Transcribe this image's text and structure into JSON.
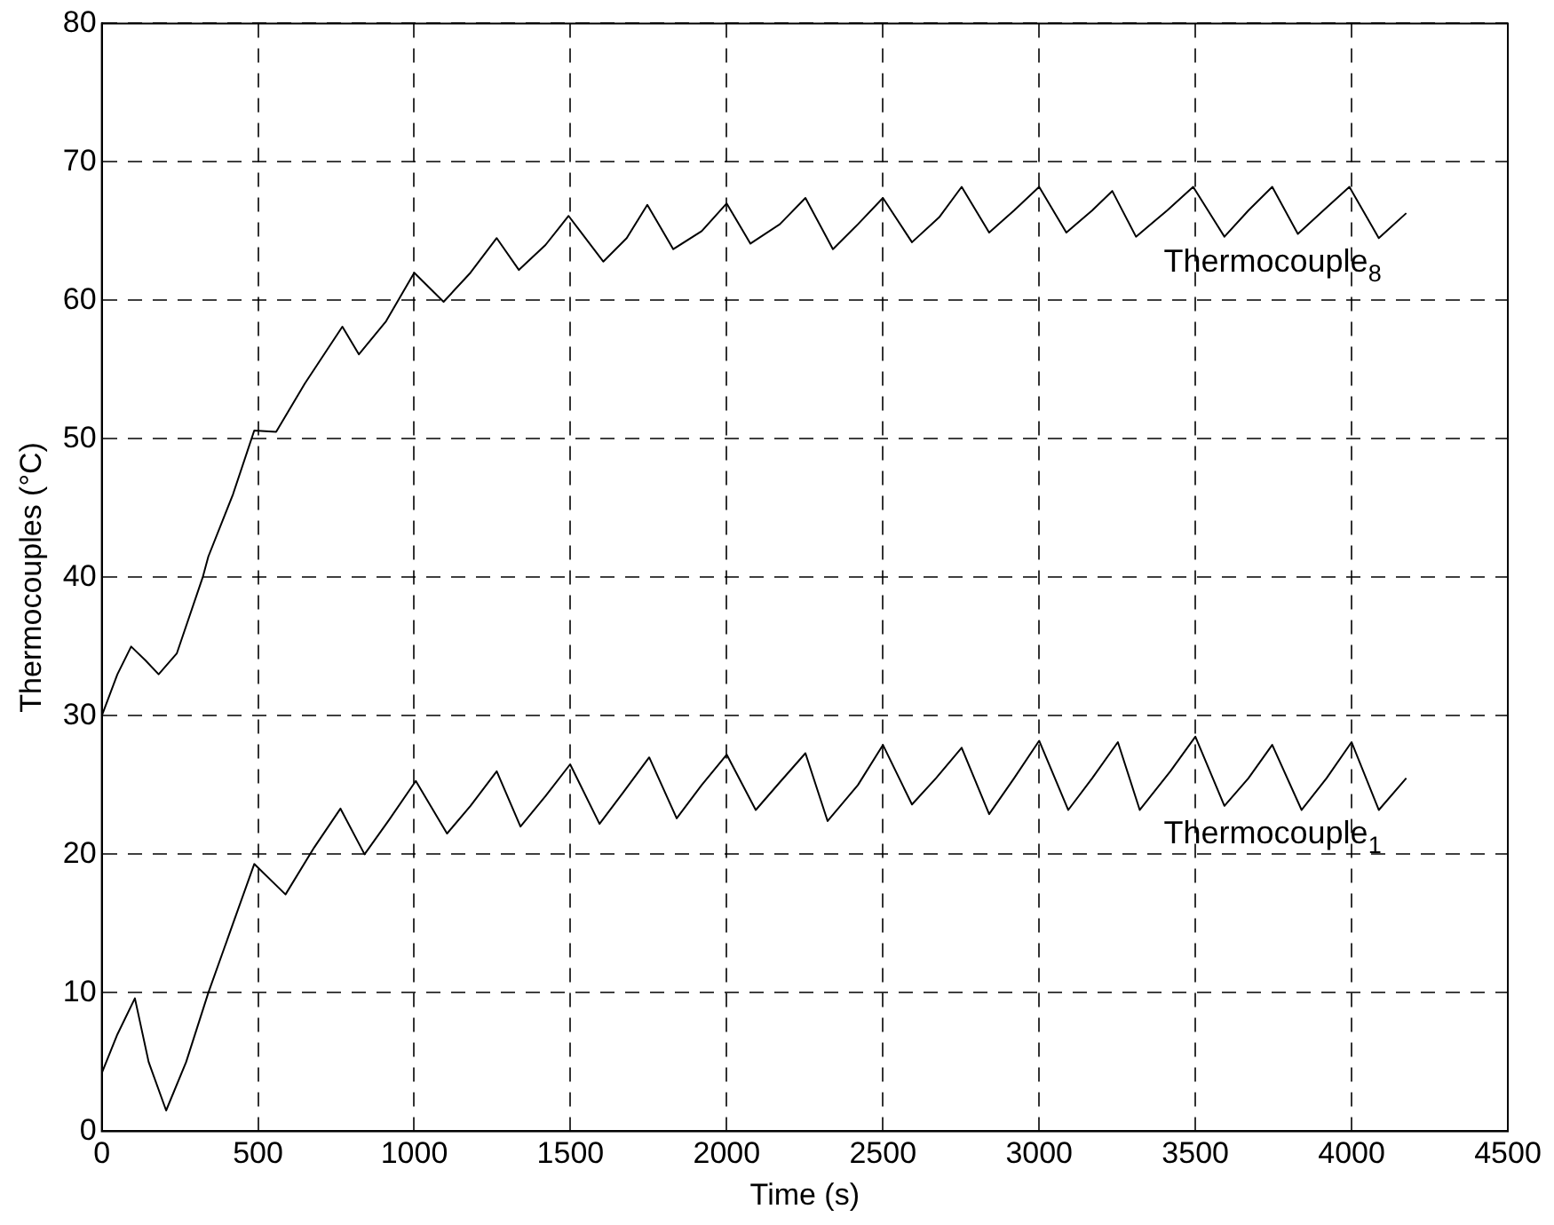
{
  "chart_data": {
    "type": "line",
    "xlabel": "Time (s)",
    "ylabel": "Thermocouples (°C)",
    "xlim": [
      0,
      4500
    ],
    "xticks": [
      0,
      500,
      1000,
      1500,
      2000,
      2500,
      3000,
      3500,
      4000,
      4500
    ],
    "ylim": [
      0,
      80
    ],
    "yticks": [
      0,
      10,
      20,
      30,
      40,
      50,
      60,
      70,
      80
    ],
    "grid": true,
    "legend": false,
    "marker": "none",
    "line_style": "solid",
    "series": [
      {
        "name": "Thermocouple$_{8}$",
        "color": "#000000",
        "x": [
          0,
          50,
          94,
          140,
          182,
          240,
          323,
          341,
          420,
          488,
          558,
          650,
          770,
          823,
          910,
          1000,
          1094,
          1180,
          1264,
          1335,
          1420,
          1494,
          1605,
          1680,
          1746,
          1829,
          1920,
          2000,
          2076,
          2170,
          2252,
          2340,
          2420,
          2500,
          2593,
          2680,
          2752,
          2840,
          2920,
          3000,
          3087,
          3170,
          3234,
          3310,
          3410,
          3493,
          3593,
          3670,
          3746,
          3828,
          3910,
          3993,
          4087,
          4175
        ],
        "values": [
          30,
          33,
          35,
          34,
          33,
          34.5,
          40,
          41.5,
          46,
          50.6,
          50.5,
          54,
          58.1,
          56.1,
          58.5,
          62,
          59.9,
          62,
          64.5,
          62.2,
          64,
          66.1,
          62.8,
          64.5,
          66.9,
          63.7,
          65,
          67,
          64.1,
          65.5,
          67.4,
          63.7,
          65.5,
          67.4,
          64.2,
          66,
          68.2,
          64.9,
          66.5,
          68.2,
          64.9,
          66.5,
          67.9,
          64.6,
          66.5,
          68.2,
          64.6,
          66.5,
          68.2,
          64.8,
          66.5,
          68.2,
          64.5,
          66.3
        ]
      },
      {
        "name": "Thermocouple$_{1}$",
        "color": "#000000",
        "x": [
          0,
          50,
          106,
          150,
          206,
          270,
          341,
          420,
          488,
          588,
          680,
          764,
          841,
          920,
          1005,
          1105,
          1180,
          1264,
          1340,
          1420,
          1499,
          1593,
          1670,
          1752,
          1840,
          1920,
          2000,
          2093,
          2170,
          2252,
          2323,
          2420,
          2500,
          2593,
          2670,
          2752,
          2840,
          2920,
          3000,
          3093,
          3170,
          3252,
          3322,
          3420,
          3500,
          3593,
          3670,
          3746,
          3840,
          3920,
          4000,
          4087,
          4175
        ],
        "values": [
          4.2,
          7,
          9.6,
          5,
          1.5,
          5,
          10,
          15,
          19.3,
          17.1,
          20.5,
          23.3,
          20,
          22.5,
          25.3,
          21.5,
          23.5,
          26,
          22,
          24.2,
          26.5,
          22.2,
          24.5,
          27,
          22.6,
          25,
          27.2,
          23.2,
          25.2,
          27.3,
          22.4,
          25,
          27.9,
          23.6,
          25.5,
          27.7,
          22.9,
          25.5,
          28.2,
          23.2,
          25.5,
          28.1,
          23.2,
          26,
          28.5,
          23.5,
          25.5,
          27.9,
          23.2,
          25.5,
          28.1,
          23.2,
          25.5
        ]
      }
    ]
  }
}
